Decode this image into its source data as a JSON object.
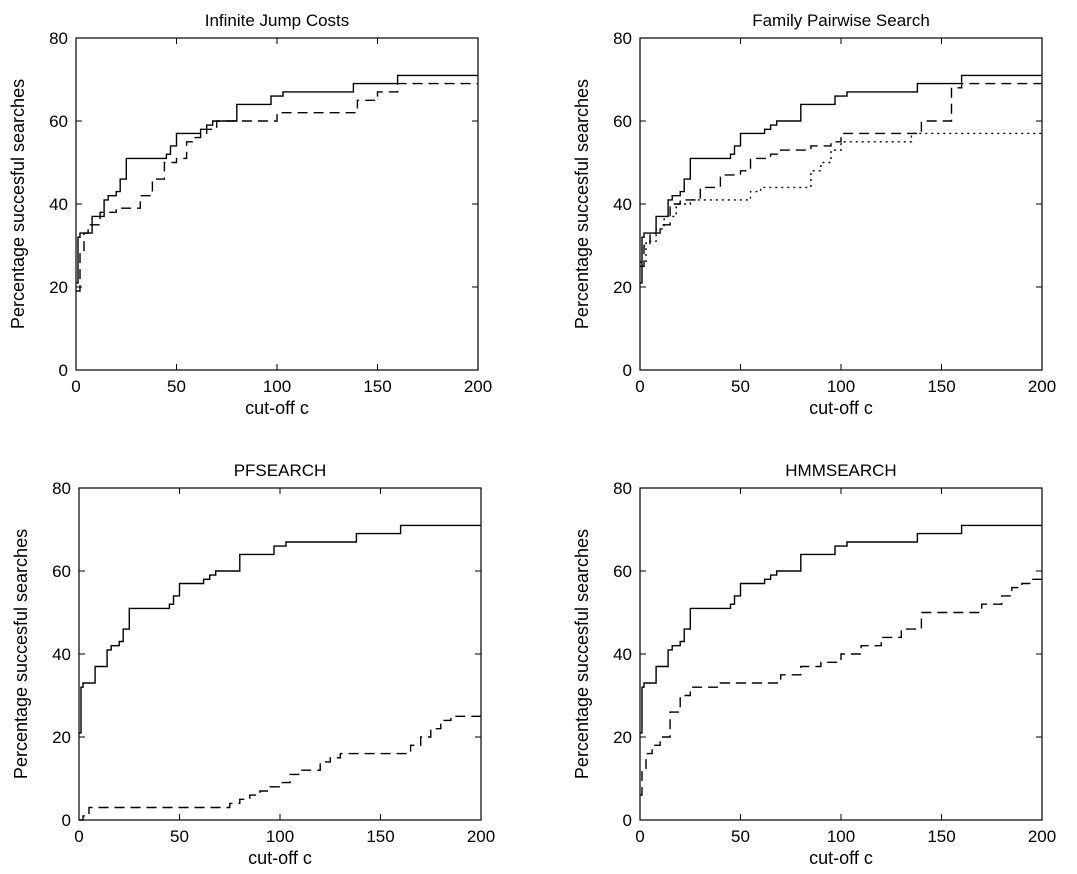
{
  "chart_data": [
    {
      "type": "line",
      "title": "Infinite Jump Costs",
      "xlabel": "cut-off c",
      "ylabel": "Percentage succesful searches",
      "xlim": [
        0,
        200
      ],
      "ylim": [
        0,
        80
      ],
      "xticks": [
        "0",
        "50",
        "100",
        "150",
        "200"
      ],
      "yticks": [
        "0",
        "20",
        "40",
        "60",
        "80"
      ],
      "grid": false,
      "series": [
        {
          "style": "solid",
          "x": [
            0,
            1,
            2,
            6,
            8,
            12,
            14,
            16,
            20,
            22,
            25,
            38,
            45,
            47,
            50,
            55,
            58,
            62,
            65,
            68,
            72,
            80,
            88,
            97,
            103,
            125,
            138,
            160,
            200
          ],
          "y": [
            21,
            32,
            33,
            33,
            37,
            37,
            41,
            42,
            43,
            46,
            51,
            51,
            52,
            54,
            57,
            57,
            57,
            58,
            59,
            60,
            60,
            64,
            64,
            66,
            67,
            67,
            69,
            71,
            71
          ]
        },
        {
          "style": "dashed",
          "x": [
            0,
            2,
            4,
            6,
            12,
            20,
            27,
            32,
            38,
            44,
            50,
            55,
            58,
            62,
            65,
            70,
            80,
            100,
            118,
            125,
            140,
            150,
            160,
            200
          ],
          "y": [
            19,
            28,
            33,
            35,
            38,
            39,
            39,
            42,
            46,
            50,
            51,
            55,
            56,
            57,
            58,
            60,
            60,
            62,
            62,
            62,
            65,
            67,
            69,
            69
          ]
        }
      ]
    },
    {
      "type": "line",
      "title": "Family Pairwise Search",
      "xlabel": "cut-off c",
      "ylabel": "Percentage succesful searches",
      "xlim": [
        0,
        200
      ],
      "ylim": [
        0,
        80
      ],
      "xticks": [
        "0",
        "50",
        "100",
        "150",
        "200"
      ],
      "yticks": [
        "0",
        "20",
        "40",
        "60",
        "80"
      ],
      "grid": false,
      "series": [
        {
          "style": "solid",
          "x": [
            0,
            1,
            2,
            6,
            8,
            12,
            14,
            16,
            20,
            22,
            25,
            38,
            45,
            47,
            50,
            55,
            58,
            62,
            65,
            68,
            72,
            80,
            88,
            97,
            103,
            125,
            138,
            160,
            200
          ],
          "y": [
            21,
            32,
            33,
            33,
            37,
            37,
            41,
            42,
            43,
            46,
            51,
            51,
            52,
            54,
            57,
            57,
            57,
            58,
            59,
            60,
            60,
            64,
            64,
            66,
            67,
            67,
            69,
            71,
            71
          ]
        },
        {
          "style": "dashed",
          "x": [
            0,
            2,
            5,
            10,
            15,
            20,
            30,
            40,
            50,
            55,
            60,
            65,
            70,
            75,
            85,
            95,
            100,
            110,
            120,
            140,
            155,
            160,
            200
          ],
          "y": [
            25,
            30,
            33,
            35,
            40,
            41,
            44,
            47,
            48,
            51,
            51,
            52,
            53,
            53,
            54,
            55,
            57,
            57,
            57,
            60,
            68,
            69,
            69
          ]
        },
        {
          "style": "dotted",
          "x": [
            0,
            3,
            8,
            12,
            18,
            25,
            35,
            45,
            50,
            55,
            60,
            70,
            80,
            85,
            90,
            95,
            100,
            130,
            135,
            200
          ],
          "y": [
            26,
            31,
            34,
            37,
            40,
            41,
            41,
            41,
            41,
            43,
            44,
            44,
            44,
            48,
            50,
            53,
            55,
            55,
            57,
            57
          ]
        }
      ]
    },
    {
      "type": "line",
      "title": "PFSEARCH",
      "xlabel": "cut-off c",
      "ylabel": "Percentage succesful searches",
      "xlim": [
        0,
        200
      ],
      "ylim": [
        0,
        80
      ],
      "xticks": [
        "0",
        "50",
        "100",
        "150",
        "200"
      ],
      "yticks": [
        "0",
        "20",
        "40",
        "60",
        "80"
      ],
      "grid": false,
      "series": [
        {
          "style": "solid",
          "x": [
            0,
            1,
            2,
            6,
            8,
            12,
            14,
            16,
            20,
            22,
            25,
            38,
            45,
            47,
            50,
            55,
            58,
            62,
            65,
            68,
            72,
            80,
            88,
            97,
            103,
            125,
            138,
            160,
            200
          ],
          "y": [
            21,
            32,
            33,
            33,
            37,
            37,
            41,
            42,
            43,
            46,
            51,
            51,
            52,
            54,
            57,
            57,
            57,
            58,
            59,
            60,
            60,
            64,
            64,
            66,
            67,
            67,
            69,
            71,
            71
          ]
        },
        {
          "style": "dashed",
          "x": [
            0,
            2,
            5,
            70,
            75,
            80,
            85,
            90,
            95,
            100,
            105,
            110,
            115,
            120,
            125,
            130,
            140,
            150,
            160,
            165,
            170,
            175,
            180,
            185,
            190,
            200
          ],
          "y": [
            0,
            1,
            3,
            3,
            4,
            5,
            6,
            7,
            8,
            9,
            11,
            12,
            12,
            14,
            15,
            16,
            16,
            16,
            16,
            18,
            20,
            22,
            24,
            25,
            25,
            25
          ]
        }
      ]
    },
    {
      "type": "line",
      "title": "HMMSEARCH",
      "xlabel": "cut-off c",
      "ylabel": "Percentage succesful searches",
      "xlim": [
        0,
        200
      ],
      "ylim": [
        0,
        80
      ],
      "xticks": [
        "0",
        "50",
        "100",
        "150",
        "200"
      ],
      "yticks": [
        "0",
        "20",
        "40",
        "60",
        "80"
      ],
      "grid": false,
      "series": [
        {
          "style": "solid",
          "x": [
            0,
            1,
            2,
            6,
            8,
            12,
            14,
            16,
            20,
            22,
            25,
            38,
            45,
            47,
            50,
            55,
            58,
            62,
            65,
            68,
            72,
            80,
            88,
            97,
            103,
            125,
            138,
            160,
            200
          ],
          "y": [
            21,
            32,
            33,
            33,
            37,
            37,
            41,
            42,
            43,
            46,
            51,
            51,
            52,
            54,
            57,
            57,
            57,
            58,
            59,
            60,
            60,
            64,
            64,
            66,
            67,
            67,
            69,
            71,
            71
          ]
        },
        {
          "style": "dashed",
          "x": [
            0,
            1,
            3,
            6,
            10,
            15,
            20,
            25,
            40,
            60,
            70,
            80,
            90,
            100,
            110,
            120,
            130,
            140,
            160,
            170,
            180,
            185,
            190,
            195,
            200
          ],
          "y": [
            6,
            12,
            16,
            18,
            20,
            26,
            30,
            32,
            33,
            33,
            35,
            37,
            38,
            40,
            42,
            44,
            46,
            50,
            50,
            52,
            54,
            56,
            57,
            58,
            59
          ]
        }
      ]
    }
  ]
}
